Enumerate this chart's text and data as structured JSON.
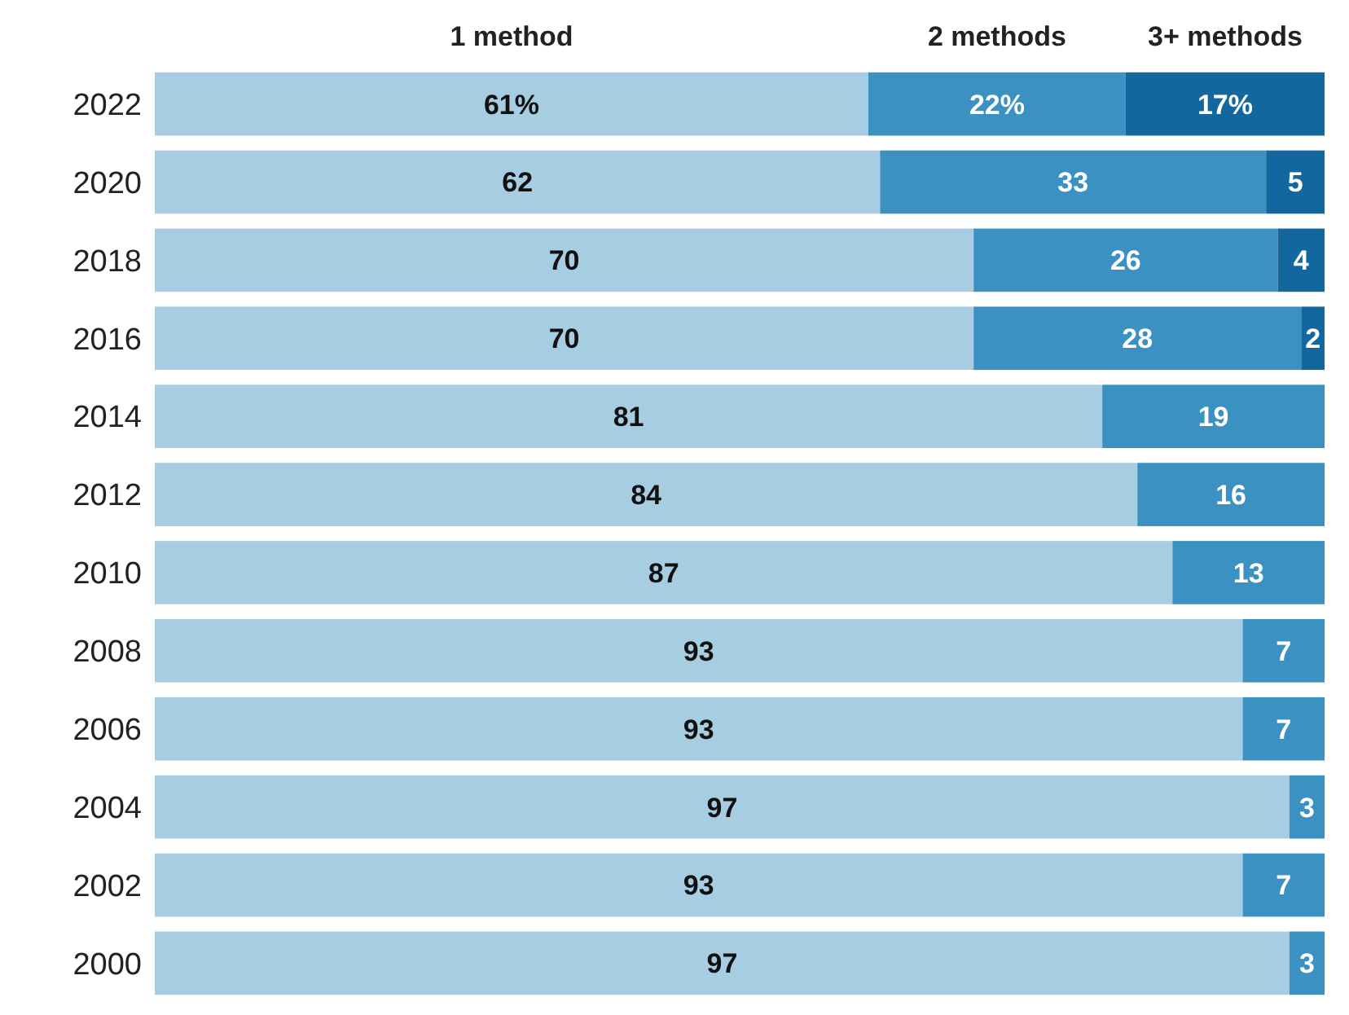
{
  "chart_data": {
    "type": "bar",
    "orientation": "horizontal",
    "stacked": true,
    "legend": "top",
    "categories": [
      "2022",
      "2020",
      "2018",
      "2016",
      "2014",
      "2012",
      "2010",
      "2008",
      "2006",
      "2004",
      "2002",
      "2000"
    ],
    "xlim": [
      0,
      100
    ],
    "tick_labels": "y",
    "series": [
      {
        "name": "1 method",
        "color": "#a6cde2",
        "values": [
          61,
          62,
          70,
          70,
          81,
          84,
          87,
          93,
          93,
          97,
          93,
          97
        ],
        "value_labels": [
          "61%",
          "62",
          "70",
          "70",
          "81",
          "84",
          "87",
          "93",
          "93",
          "97",
          "93",
          "97"
        ]
      },
      {
        "name": "2 methods",
        "color": "#3a91c2",
        "values": [
          22,
          33,
          26,
          28,
          19,
          16,
          13,
          7,
          7,
          3,
          7,
          3
        ],
        "value_labels": [
          "22%",
          "33",
          "26",
          "28",
          "19",
          "16",
          "13",
          "7",
          "7",
          "3",
          "7",
          "3"
        ]
      },
      {
        "name": "3+ methods",
        "color": "#12679e",
        "values": [
          17,
          5,
          4,
          2,
          null,
          null,
          null,
          null,
          null,
          null,
          null,
          null
        ],
        "value_labels": [
          "17%",
          "5",
          "4",
          "2",
          null,
          null,
          null,
          null,
          null,
          null,
          null,
          null
        ]
      }
    ]
  }
}
